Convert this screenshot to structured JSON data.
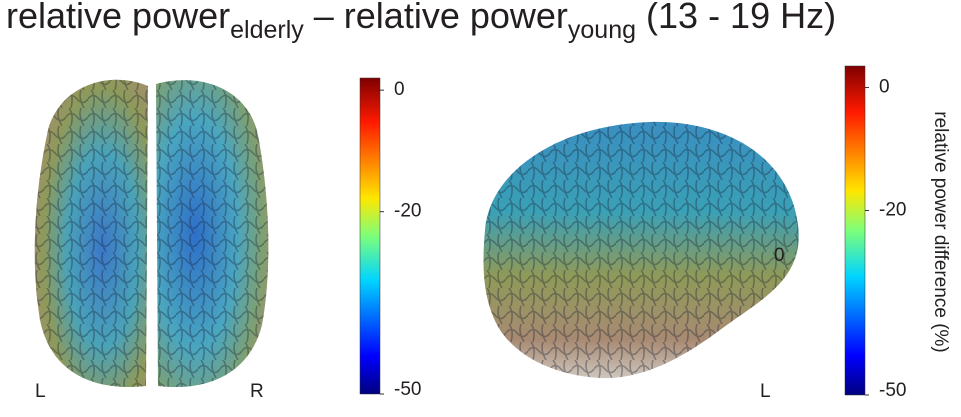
{
  "title": {
    "part1": "relative power",
    "sub1": "elderly",
    "part2": " – relative power",
    "sub2": "young",
    "part3": " (13 - 19 Hz)"
  },
  "panels": [
    {
      "labels": [
        "L",
        "R"
      ],
      "colorbar": {
        "lim": [
          -50,
          2
        ],
        "ticks": [
          0,
          -20,
          -50
        ]
      }
    },
    {
      "labels": [
        "L"
      ],
      "stray_label": "0",
      "colorbar": {
        "lim": [
          -50,
          3.5
        ],
        "ticks": [
          0,
          -20,
          -50
        ],
        "label": "relative power difference (%)"
      }
    }
  ]
}
